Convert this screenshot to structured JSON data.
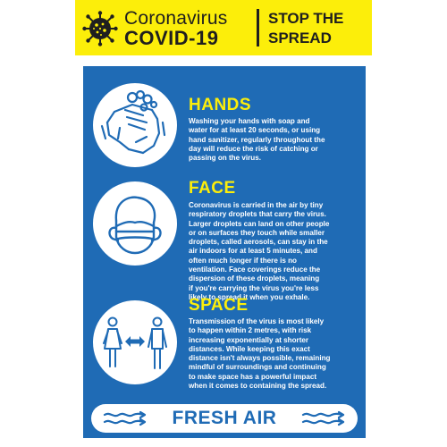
{
  "header": {
    "title_line1": "Coronavirus",
    "title_line2": "COVID-19",
    "tagline_line1": "STOP THE",
    "tagline_line2": "SPREAD"
  },
  "sections": [
    {
      "title": "HANDS",
      "icon": "washing-hands-icon",
      "lines": [
        "Washing your hands with soap and",
        "water for at least 20 seconds, or using",
        "hand sanitizer, regularly throughout the",
        "day will reduce the risk of catching or",
        "passing on the virus."
      ]
    },
    {
      "title": "FACE",
      "icon": "face-mask-icon",
      "lines": [
        "Coronavirus is carried in the air by tiny",
        "respiratory droplets that carry the virus.",
        "Larger droplets can land on other people",
        "or on surfaces they touch while smaller",
        "droplets, called aerosols, can stay in the",
        "air indoors for at least 5 minutes, and",
        "often much longer if there is no",
        "ventilation. Face coverings reduce the",
        "dispersion of these droplets, meaning",
        "if you're carrying the virus you're less",
        "likely to spread it when you exhale."
      ]
    },
    {
      "title": "SPACE",
      "icon": "social-distance-icon",
      "lines": [
        "Transmission of the virus is most likely",
        "to happen within 2 metres, with risk",
        "increasing exponentially at shorter",
        "distances. While keeping this exact",
        "distance isn't always possible, remaining",
        "mindful of surroundings and continuing",
        "to make space has a powerful impact",
        "when it comes to containing the spread."
      ]
    }
  ],
  "footer": {
    "label": "FRESH AIR",
    "icon": "air-flow-icon"
  },
  "colors": {
    "yellow": "#fcee0a",
    "blue": "#1f6bb5",
    "white": "#ffffff",
    "dark": "#1f1f1f"
  }
}
